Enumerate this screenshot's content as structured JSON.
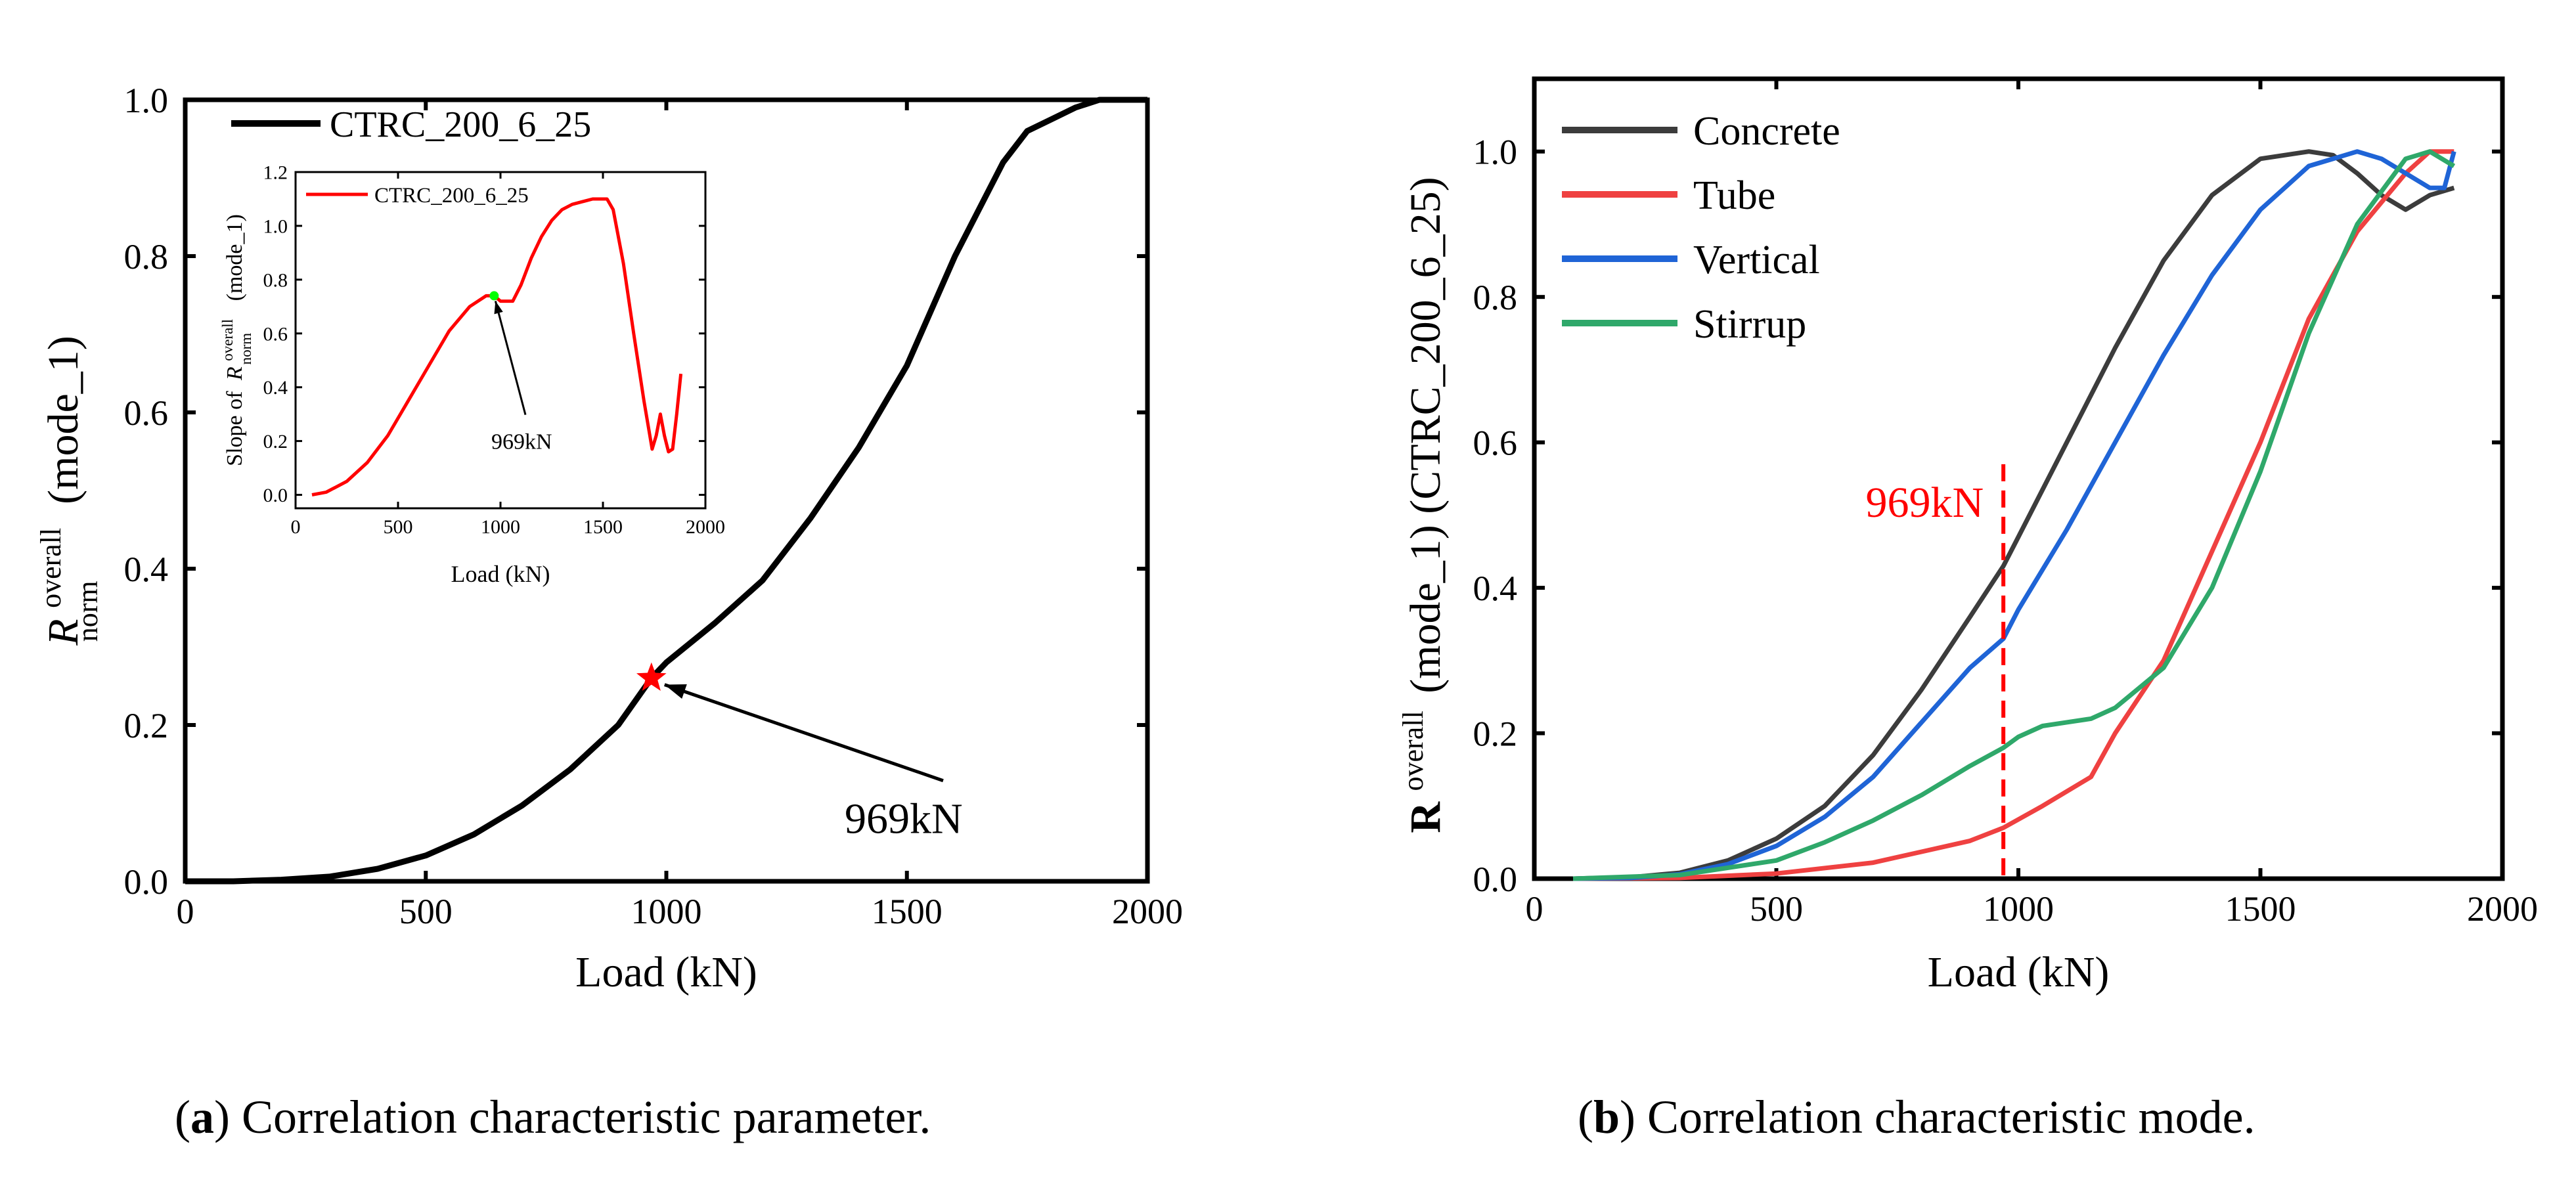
{
  "chart_data": [
    {
      "id": "a",
      "type": "line",
      "title": "",
      "xlabel": "Load (kN)",
      "ylabel": {
        "base": "R",
        "sup": "overall",
        "sub": "norm",
        "suffix": "(mode_1)"
      },
      "xlim": [
        0,
        2000
      ],
      "ylim": [
        0,
        1.0
      ],
      "xticks": [
        0,
        500,
        1000,
        1500,
        2000
      ],
      "yticks": [
        0.0,
        0.2,
        0.4,
        0.6,
        0.8,
        1.0
      ],
      "xtick_labels": [
        "0",
        "500",
        "1000",
        "1500",
        "2000"
      ],
      "ytick_labels": [
        "0.0",
        "0.2",
        "0.4",
        "0.6",
        "0.8",
        "1.0"
      ],
      "legend": {
        "position": "top-left",
        "entries": [
          "CTRC_200_6_25"
        ]
      },
      "series": [
        {
          "name": "CTRC_200_6_25",
          "color": "#000000",
          "x": [
            0,
            100,
            200,
            300,
            400,
            500,
            600,
            700,
            800,
            900,
            969,
            1000,
            1100,
            1200,
            1300,
            1400,
            1500,
            1600,
            1700,
            1750,
            1800,
            1850,
            1900,
            2000
          ],
          "y": [
            0.0,
            0.0,
            0.002,
            0.006,
            0.016,
            0.033,
            0.06,
            0.097,
            0.143,
            0.2,
            0.26,
            0.28,
            0.33,
            0.385,
            0.465,
            0.555,
            0.66,
            0.8,
            0.92,
            0.96,
            0.975,
            0.99,
            1.0,
            1.0
          ]
        }
      ],
      "highlight": {
        "x": 969,
        "y": 0.26,
        "color": "#ff0000",
        "marker": "star"
      },
      "annotations": [
        {
          "text": "969kN",
          "point_x": 969,
          "point_y": 0.26,
          "text_x": 1630,
          "text_y": 0.07
        }
      ],
      "inset": {
        "type": "line",
        "xlabel": "Load (kN)",
        "ylabel": {
          "prefix": "Slope of",
          "base": "R",
          "sup": "overall",
          "sub": "norm",
          "suffix": "(mode_1)"
        },
        "xlim": [
          0,
          2000
        ],
        "ylim": [
          -0.05,
          1.2
        ],
        "xticks": [
          0,
          500,
          1000,
          1500,
          2000
        ],
        "yticks": [
          0.0,
          0.2,
          0.4,
          0.6,
          0.8,
          1.0,
          1.2
        ],
        "xtick_labels": [
          "0",
          "500",
          "1000",
          "1500",
          "2000"
        ],
        "ytick_labels": [
          "0.0",
          "0.2",
          "0.4",
          "0.6",
          "0.8",
          "1.0",
          "1.2"
        ],
        "legend": {
          "position": "top-left",
          "entries": [
            "CTRC_200_6_25"
          ]
        },
        "series": [
          {
            "name": "CTRC_200_6_25",
            "color": "#ff0000",
            "x": [
              80,
              150,
              250,
              350,
              450,
              550,
              650,
              750,
              850,
              930,
              969,
              1000,
              1060,
              1100,
              1150,
              1200,
              1250,
              1300,
              1350,
              1400,
              1450,
              1500,
              1520,
              1550,
              1600,
              1650,
              1700,
              1740,
              1760,
              1780,
              1800,
              1820,
              1840,
              1860,
              1880
            ],
            "y": [
              0.0,
              0.01,
              0.05,
              0.12,
              0.22,
              0.35,
              0.48,
              0.61,
              0.7,
              0.74,
              0.74,
              0.72,
              0.72,
              0.78,
              0.88,
              0.96,
              1.02,
              1.06,
              1.08,
              1.09,
              1.1,
              1.1,
              1.1,
              1.06,
              0.86,
              0.6,
              0.35,
              0.17,
              0.22,
              0.3,
              0.22,
              0.16,
              0.17,
              0.3,
              0.45
            ]
          }
        ],
        "highlight": {
          "x": 969,
          "y": 0.74,
          "color": "#00ff00"
        },
        "annotations": [
          {
            "text": "969kN",
            "point_x": 969,
            "point_y": 0.74,
            "text_x": 1250,
            "text_y": 0.2
          }
        ]
      }
    },
    {
      "id": "b",
      "type": "line",
      "title": "",
      "xlabel": "Load (kN)",
      "ylabel": {
        "base": "R",
        "sup": "overall",
        "suffix": "(mode_1) (CTRC_200_6_25)"
      },
      "xlim": [
        0,
        2000
      ],
      "ylim": [
        0,
        1.1
      ],
      "xticks": [
        0,
        500,
        1000,
        1500,
        2000
      ],
      "yticks": [
        0.0,
        0.2,
        0.4,
        0.6,
        0.8,
        1.0
      ],
      "xtick_labels": [
        "0",
        "500",
        "1000",
        "1500",
        "2000"
      ],
      "ytick_labels": [
        "0.0",
        "0.2",
        "0.4",
        "0.6",
        "0.8",
        "1.0"
      ],
      "legend": {
        "position": "top-left",
        "entries": [
          "Concrete",
          "Tube",
          "Vertical",
          "Stirrup"
        ]
      },
      "series": [
        {
          "name": "Concrete",
          "color": "#3c3c3c",
          "x": [
            80,
            200,
            300,
            400,
            500,
            600,
            700,
            800,
            900,
            969,
            1000,
            1100,
            1200,
            1300,
            1400,
            1500,
            1600,
            1650,
            1700,
            1750,
            1800,
            1850,
            1900
          ],
          "y": [
            0.0,
            0.002,
            0.008,
            0.025,
            0.055,
            0.1,
            0.17,
            0.26,
            0.36,
            0.43,
            0.47,
            0.6,
            0.73,
            0.85,
            0.94,
            0.99,
            1.0,
            0.995,
            0.97,
            0.94,
            0.92,
            0.94,
            0.95
          ]
        },
        {
          "name": "Tube",
          "color": "#ef4141",
          "x": [
            80,
            300,
            500,
            700,
            900,
            969,
            1050,
            1100,
            1150,
            1200,
            1300,
            1400,
            1500,
            1600,
            1700,
            1800,
            1850,
            1900
          ],
          "y": [
            0.0,
            0.001,
            0.007,
            0.022,
            0.052,
            0.07,
            0.1,
            0.12,
            0.14,
            0.2,
            0.3,
            0.45,
            0.6,
            0.77,
            0.89,
            0.97,
            1.0,
            1.0
          ]
        },
        {
          "name": "Vertical",
          "color": "#1f64d6",
          "x": [
            80,
            200,
            300,
            400,
            500,
            600,
            700,
            800,
            900,
            969,
            1000,
            1100,
            1200,
            1300,
            1400,
            1500,
            1600,
            1700,
            1750,
            1800,
            1850,
            1880,
            1900
          ],
          "y": [
            0.0,
            0.001,
            0.006,
            0.02,
            0.045,
            0.085,
            0.14,
            0.215,
            0.29,
            0.33,
            0.37,
            0.48,
            0.6,
            0.72,
            0.83,
            0.92,
            0.98,
            1.0,
            0.99,
            0.97,
            0.95,
            0.95,
            1.0
          ]
        },
        {
          "name": "Stirrup",
          "color": "#2fa86a",
          "x": [
            80,
            300,
            500,
            600,
            700,
            800,
            900,
            969,
            1000,
            1050,
            1100,
            1150,
            1200,
            1300,
            1400,
            1500,
            1600,
            1700,
            1800,
            1850,
            1900
          ],
          "y": [
            0.0,
            0.005,
            0.025,
            0.05,
            0.08,
            0.115,
            0.155,
            0.18,
            0.195,
            0.21,
            0.215,
            0.22,
            0.235,
            0.29,
            0.4,
            0.56,
            0.75,
            0.9,
            0.99,
            1.0,
            0.98
          ]
        }
      ],
      "reference_line": {
        "x": 969,
        "y_top": 0.57,
        "label": "969kN",
        "color": "#ff0000",
        "style": "dashed"
      }
    }
  ],
  "captions": {
    "a": {
      "tag": "a",
      "text": " Correlation characteristic parameter."
    },
    "b": {
      "tag": "b",
      "text": " Correlation characteristic mode."
    }
  }
}
